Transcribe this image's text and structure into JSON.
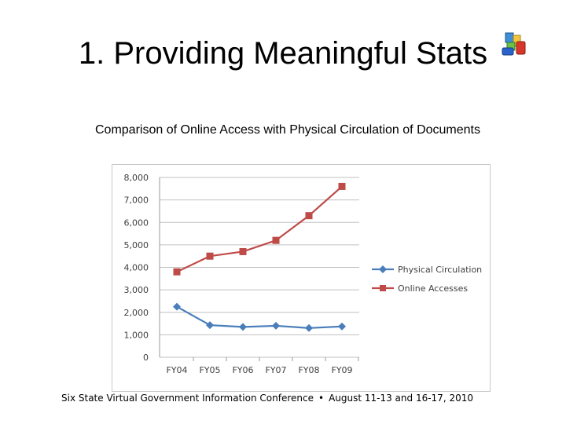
{
  "slide": {
    "title": "1. Providing Meaningful Stats",
    "logo_icon": "colorful-blocks-icon"
  },
  "chart_subtitle": "Comparison of Online Access with Physical Circulation of Documents",
  "footer": {
    "left": "Six State Virtual Government Information Conference",
    "separator": "•",
    "right": "August 11-13 and 16-17, 2010"
  },
  "colors": {
    "physical": "#4a7ebb",
    "online": "#be4b48",
    "grid": "#c0c0c0",
    "axis_text": "#404040"
  },
  "chart_data": {
    "type": "line",
    "categories": [
      "FY04",
      "FY05",
      "FY06",
      "FY07",
      "FY08",
      "FY09"
    ],
    "series": [
      {
        "name": "Physical Circulation",
        "values": [
          2250,
          1430,
          1350,
          1400,
          1300,
          1370
        ],
        "marker": "diamond"
      },
      {
        "name": "Online Accesses",
        "values": [
          3800,
          4500,
          4700,
          5200,
          6300,
          7600
        ],
        "marker": "square"
      }
    ],
    "y_ticks": [
      "0",
      "1,000",
      "2,000",
      "3,000",
      "4,000",
      "5,000",
      "6,000",
      "7,000",
      "8,000"
    ],
    "ylim": [
      0,
      8000
    ],
    "grid": true,
    "legend_position": "right"
  }
}
